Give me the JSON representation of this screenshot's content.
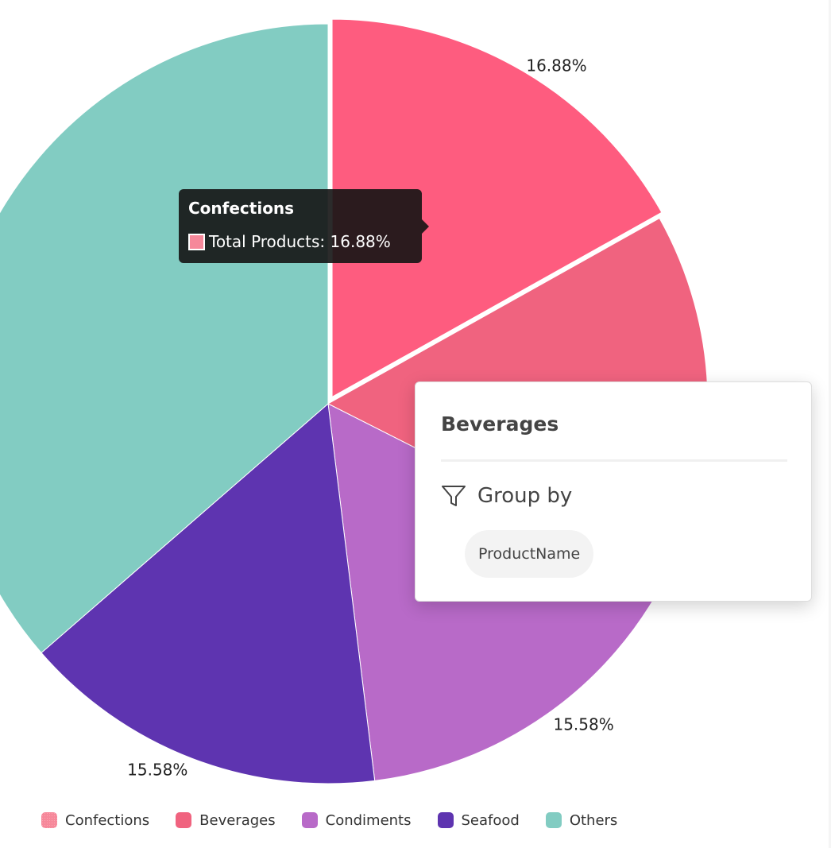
{
  "chart_data": {
    "type": "pie",
    "categories": [
      "Confections",
      "Beverages",
      "Condiments",
      "Seafood",
      "Others"
    ],
    "values": [
      16.88,
      15.58,
      15.58,
      15.58,
      36.38
    ],
    "colors": [
      "#fe5c7f",
      "#f0637f",
      "#b86ac8",
      "#5e34b0",
      "#82ccc2"
    ],
    "data_labels": [
      {
        "category": "Confections",
        "text": "16.88%"
      },
      {
        "category": "Condiments",
        "text": "15.58%"
      },
      {
        "category": "Seafood",
        "text": "15.58%"
      }
    ],
    "exploded": "Confections",
    "legend": {
      "position": "bottom-left",
      "items": [
        {
          "label": "Confections",
          "color": "#f6889a",
          "style": "patterned"
        },
        {
          "label": "Beverages",
          "color": "#f0637f"
        },
        {
          "label": "Condiments",
          "color": "#b86ac8"
        },
        {
          "label": "Seafood",
          "color": "#5e34b0"
        },
        {
          "label": "Others",
          "color": "#82ccc2"
        }
      ]
    }
  },
  "tooltip": {
    "title": "Confections",
    "text": "Total Products: 16.88%",
    "swatch_color": "#f6889a"
  },
  "popover": {
    "title": "Beverages",
    "group_by_label": "Group by",
    "chip_label": "ProductName",
    "icon": "filter-icon"
  }
}
